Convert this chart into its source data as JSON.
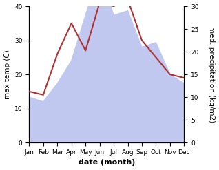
{
  "months": [
    "Jan",
    "Feb",
    "Mar",
    "Apr",
    "May",
    "Jun",
    "Jul",
    "Aug",
    "Sep",
    "Oct",
    "Nov",
    "Dec"
  ],
  "temperature": [
    15,
    14,
    26,
    35,
    27,
    41,
    40,
    42,
    30,
    25,
    20,
    19
  ],
  "precipitation": [
    10,
    9,
    13,
    18,
    28,
    38,
    28,
    29,
    21,
    22,
    15,
    13
  ],
  "temp_color": "#b03030",
  "precip_fill_color": "#c0c8f0",
  "ylabel_left": "max temp (C)",
  "ylabel_right": "med. precipitation (kg/m2)",
  "xlabel": "date (month)",
  "ylim_left": [
    0,
    40
  ],
  "ylim_right": [
    0,
    30
  ],
  "yticks_left": [
    0,
    10,
    20,
    30,
    40
  ],
  "yticks_right": [
    0,
    5,
    10,
    15,
    20,
    25,
    30
  ],
  "background_color": "#ffffff",
  "label_fontsize": 7.5,
  "tick_fontsize": 6.5,
  "xlabel_fontsize": 8
}
